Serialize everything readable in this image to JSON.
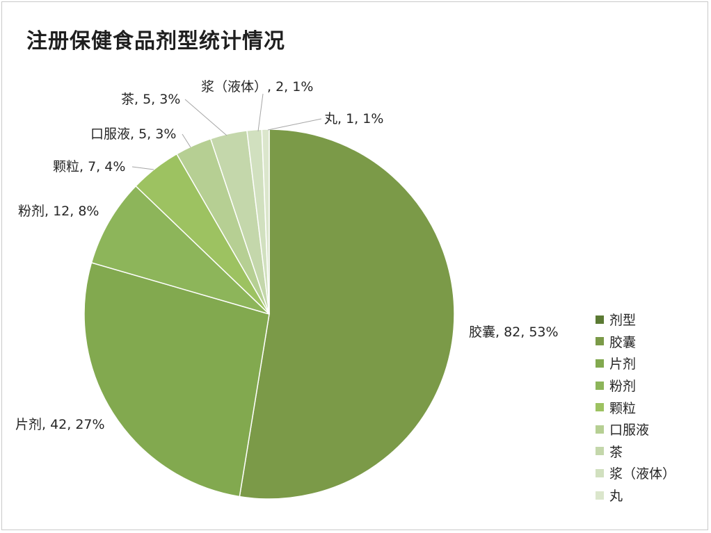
{
  "chart_data": {
    "type": "pie",
    "title": "注册保健食品剂型统计情况",
    "legend_position": "right",
    "legend_title": "剂型",
    "legend_title_color": "#5b7a33",
    "categories": [
      "胶囊",
      "片剂",
      "粉剂",
      "颗粒",
      "口服液",
      "茶",
      "浆（液体）",
      "丸"
    ],
    "values": [
      82,
      42,
      12,
      7,
      5,
      5,
      2,
      1
    ],
    "labels": [
      "胶囊, 82, 53%",
      "片剂, 42, 27%",
      "粉剂, 12, 8%",
      "颗粒, 7, 4%",
      "口服液, 5, 3%",
      "茶, 5, 3%",
      "浆（液体）, 2, 1%",
      "丸, 1, 1%"
    ],
    "colors": [
      "#7b9a48",
      "#82a94f",
      "#8db55a",
      "#9dc261",
      "#b6cf93",
      "#c4d7ab",
      "#d1e0bf",
      "#dbe6cc"
    ]
  }
}
